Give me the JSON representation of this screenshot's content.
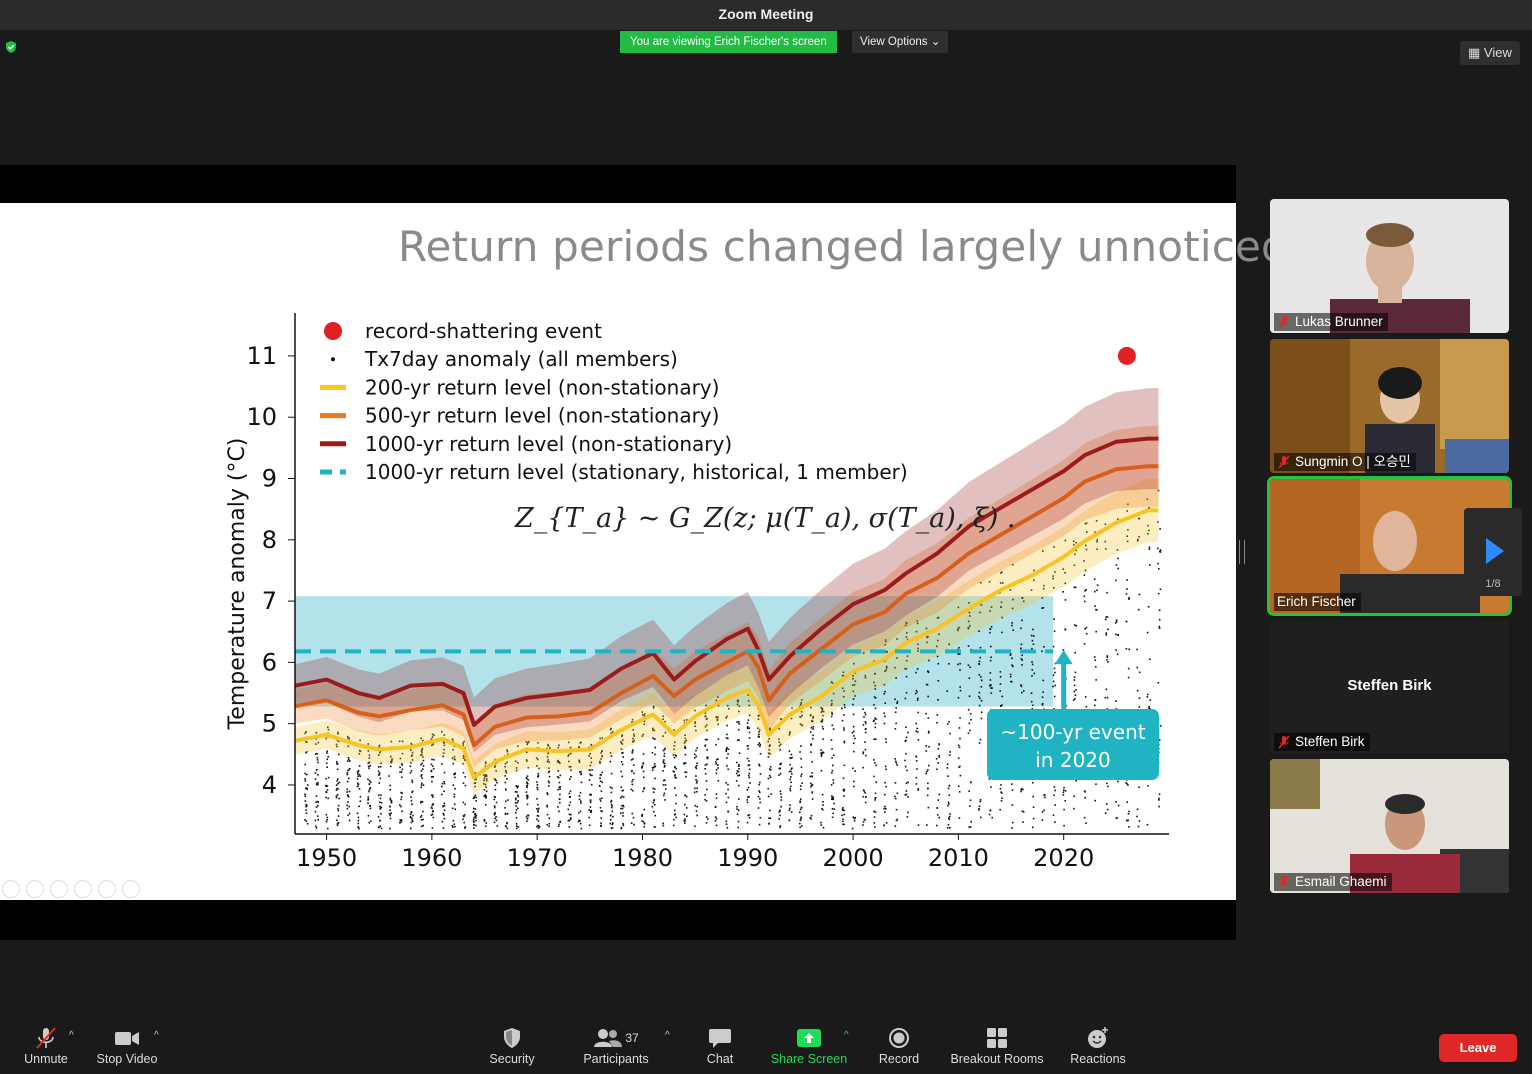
{
  "window": {
    "title": "Zoom Meeting"
  },
  "banner": {
    "viewing": "You are viewing Erich Fischer's screen",
    "view_options": "View Options"
  },
  "view_button": "View",
  "slide": {
    "title": "Return periods changed largely unnoticed"
  },
  "chart_data": {
    "type": "line",
    "title": "",
    "xlabel": "",
    "ylabel": "Temperature anomaly (°C)",
    "xlim": [
      1947,
      2030
    ],
    "ylim": [
      3.2,
      11.7
    ],
    "xticks": [
      "1950",
      "1960",
      "1970",
      "1980",
      "1990",
      "2000",
      "2010",
      "2020"
    ],
    "yticks": [
      "4",
      "5",
      "6",
      "7",
      "8",
      "9",
      "10",
      "11"
    ],
    "legend": [
      "record-shattering event",
      "Tx7day anomaly (all members)",
      "200-yr return level (non-stationary)",
      "500-yr return level (non-stationary)",
      "1000-yr return level (non-stationary)",
      "1000-yr return level (stationary, historical, 1 member)"
    ],
    "formula": "Z_{T_a} ~ G_Z(z; μ(T_a), σ(T_a), ξ) .",
    "annotation": [
      "~100-yr event",
      "in 2020"
    ],
    "record_event": {
      "x": 2026,
      "y": 11.0
    },
    "stationary_1000yr": {
      "x": [
        1947,
        2019
      ],
      "y": 6.18
    },
    "shaded_band": {
      "x": [
        1947,
        2019
      ],
      "y": [
        5.28,
        7.08
      ]
    },
    "arrow": {
      "x": 2020,
      "y_from": 4.6,
      "y_to": 6.2
    },
    "x": [
      1947,
      1950,
      1953,
      1955,
      1958,
      1961,
      1963,
      1964,
      1966,
      1969,
      1972,
      1975,
      1978,
      1981,
      1983,
      1985,
      1988,
      1990,
      1991,
      1992,
      1994,
      1997,
      2000,
      2003,
      2005,
      2008,
      2011,
      2014,
      2017,
      2020,
      2022,
      2025,
      2028,
      2029
    ],
    "series": [
      {
        "name": "200-yr return level (non-stationary)",
        "color": "#f7c325",
        "values": [
          4.72,
          4.82,
          4.65,
          4.58,
          4.62,
          4.75,
          4.6,
          4.12,
          4.38,
          4.58,
          4.55,
          4.58,
          4.9,
          5.15,
          4.82,
          5.12,
          5.42,
          5.55,
          5.3,
          4.82,
          5.15,
          5.45,
          5.85,
          6.05,
          6.32,
          6.55,
          6.88,
          7.18,
          7.42,
          7.72,
          7.98,
          8.28,
          8.48,
          8.48
        ]
      },
      {
        "name": "500-yr return level (non-stationary)",
        "color": "#ec7a1c",
        "values": [
          5.28,
          5.38,
          5.18,
          5.12,
          5.22,
          5.3,
          5.15,
          4.65,
          4.95,
          5.1,
          5.12,
          5.18,
          5.5,
          5.78,
          5.45,
          5.72,
          6.0,
          6.18,
          5.92,
          5.38,
          5.82,
          6.22,
          6.62,
          6.82,
          7.12,
          7.38,
          7.78,
          8.08,
          8.38,
          8.68,
          8.95,
          9.15,
          9.2,
          9.2
        ]
      },
      {
        "name": "1000-yr return level (non-stationary)",
        "color": "#9b1b1b",
        "values": [
          5.62,
          5.72,
          5.5,
          5.42,
          5.62,
          5.65,
          5.5,
          4.98,
          5.28,
          5.42,
          5.48,
          5.55,
          5.9,
          6.15,
          5.72,
          6.02,
          6.38,
          6.55,
          6.2,
          5.72,
          6.1,
          6.55,
          6.95,
          7.18,
          7.45,
          7.78,
          8.22,
          8.52,
          8.82,
          9.12,
          9.38,
          9.6,
          9.65,
          9.65
        ]
      }
    ]
  },
  "participants": [
    {
      "name": "Lukas Brunner"
    },
    {
      "name": "Sungmin O | 오승민"
    },
    {
      "name": "Erich Fischer"
    },
    {
      "name": "Steffen Birk",
      "center_name": "Steffen Birk"
    },
    {
      "name": "Esmail Ghaemi"
    }
  ],
  "pager": "1/8",
  "toolbar": {
    "unmute": "Unmute",
    "stop_video": "Stop Video",
    "security": "Security",
    "participants": "Participants",
    "participants_count": "37",
    "chat": "Chat",
    "share_screen": "Share Screen",
    "record": "Record",
    "breakout_rooms": "Breakout Rooms",
    "reactions": "Reactions",
    "leave": "Leave"
  },
  "colors": {
    "accent_green": "#22bb45",
    "leave_red": "#e02828",
    "share_green": "#23d959",
    "band_cyan": "#b3e2ea",
    "teal": "#1fb3c4"
  }
}
